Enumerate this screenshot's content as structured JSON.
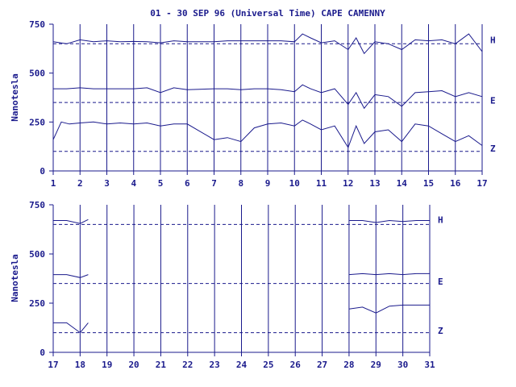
{
  "chart_data": {
    "type": "line",
    "title": "01 - 30 SEP 96 (Universal Time) CAPE CAMENNY",
    "ylabel": "Nanotesla",
    "color": "#1a1a8c",
    "yticks": [
      0,
      250,
      500,
      750
    ],
    "ylim": [
      0,
      750
    ],
    "grid": "vertical day lines",
    "baselines": [
      {
        "component": "H",
        "value": 650
      },
      {
        "component": "E",
        "value": 350
      },
      {
        "component": "Z",
        "value": 100
      }
    ],
    "panels": [
      {
        "xlim": [
          1,
          17
        ],
        "xticks": [
          "1",
          "2",
          "3",
          "4",
          "5",
          "6",
          "7",
          "8",
          "9",
          "10",
          "11",
          "12",
          "13",
          "14",
          "15",
          "16",
          "17"
        ],
        "series": [
          {
            "name": "H",
            "label_value": 670,
            "x": [
              1,
              1.5,
              2,
              2.5,
              3,
              3.5,
              4,
              4.5,
              5,
              5.5,
              6,
              7,
              7.5,
              8,
              8.5,
              9,
              9.5,
              10,
              10.3,
              10.6,
              11,
              11.5,
              12,
              12.3,
              12.6,
              13,
              13.5,
              14,
              14.5,
              15,
              15.5,
              16,
              16.5,
              17
            ],
            "y": [
              660,
              650,
              670,
              660,
              665,
              660,
              662,
              660,
              655,
              665,
              660,
              660,
              665,
              665,
              665,
              665,
              665,
              660,
              700,
              680,
              655,
              665,
              620,
              680,
              600,
              660,
              650,
              620,
              670,
              665,
              670,
              650,
              700,
              610
            ]
          },
          {
            "name": "E",
            "label_value": 360,
            "x": [
              1,
              1.5,
              2,
              2.5,
              3,
              3.5,
              4,
              4.5,
              5,
              5.5,
              6,
              7,
              7.5,
              8,
              8.5,
              9,
              9.5,
              10,
              10.3,
              10.6,
              11,
              11.5,
              12,
              12.3,
              12.6,
              13,
              13.5,
              14,
              14.5,
              15,
              15.5,
              16,
              16.5,
              17
            ],
            "y": [
              420,
              420,
              425,
              420,
              420,
              420,
              420,
              425,
              400,
              425,
              415,
              420,
              420,
              415,
              420,
              420,
              415,
              405,
              440,
              420,
              400,
              420,
              340,
              400,
              320,
              390,
              380,
              330,
              400,
              405,
              410,
              380,
              400,
              380
            ]
          },
          {
            "name": "Z",
            "label_value": 115,
            "x": [
              1,
              1.3,
              1.6,
              2,
              2.5,
              3,
              3.5,
              4,
              4.5,
              5,
              5.5,
              6,
              7,
              7.5,
              8,
              8.5,
              9,
              9.5,
              10,
              10.3,
              10.6,
              11,
              11.5,
              12,
              12.3,
              12.6,
              13,
              13.5,
              14,
              14.5,
              15,
              15.5,
              16,
              16.5,
              17
            ],
            "y": [
              160,
              250,
              240,
              245,
              250,
              240,
              245,
              240,
              245,
              230,
              240,
              240,
              160,
              170,
              150,
              220,
              240,
              245,
              230,
              260,
              240,
              210,
              230,
              120,
              230,
              140,
              200,
              210,
              150,
              240,
              230,
              190,
              150,
              180,
              130
            ]
          }
        ]
      },
      {
        "xlim": [
          17,
          31
        ],
        "xticks": [
          "17",
          "18",
          "19",
          "20",
          "21",
          "22",
          "23",
          "24",
          "25",
          "26",
          "27",
          "28",
          "29",
          "30",
          "31"
        ],
        "series": [
          {
            "name": "H",
            "label_value": 675,
            "x": [
              17,
              17.5,
              18,
              18.3,
              28,
              28.5,
              29,
              29.5,
              30,
              30.5,
              31
            ],
            "y": [
              670,
              670,
              655,
              675,
              670,
              670,
              660,
              670,
              665,
              670,
              670
            ]
          },
          {
            "name": "E",
            "label_value": 360,
            "x": [
              17,
              17.5,
              18,
              18.3,
              28,
              28.5,
              29,
              29.5,
              30,
              30.5,
              31
            ],
            "y": [
              395,
              395,
              380,
              395,
              395,
              400,
              395,
              400,
              395,
              400,
              400
            ]
          },
          {
            "name": "Z",
            "label_value": 110,
            "x": [
              17,
              17.5,
              18,
              18.3,
              28,
              28.5,
              29,
              29.5,
              30,
              30.5,
              31
            ],
            "y": [
              150,
              150,
              100,
              150,
              220,
              230,
              200,
              235,
              240,
              240,
              240
            ]
          }
        ]
      }
    ]
  }
}
